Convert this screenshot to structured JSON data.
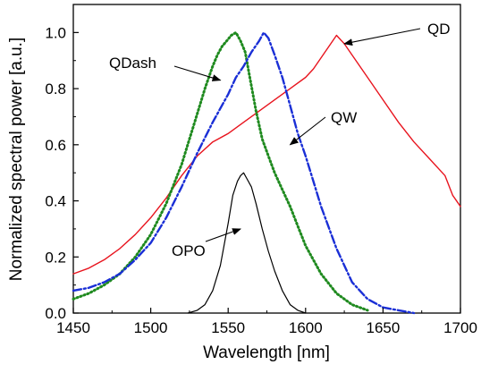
{
  "chart_data": {
    "type": "line",
    "xlabel": "Wavelength [nm]",
    "ylabel": "Normalized spectral power [a.u.]",
    "xlim": [
      1450,
      1700
    ],
    "ylim": [
      0.0,
      1.1
    ],
    "x_ticks": [
      1450,
      1500,
      1550,
      1600,
      1650,
      1700
    ],
    "x_tick_labels": [
      "1450",
      "1500",
      "1550",
      "1600",
      "1650",
      "1700"
    ],
    "y_ticks": [
      0.0,
      0.2,
      0.4,
      0.6,
      0.8,
      1.0
    ],
    "y_tick_labels": [
      "0.0",
      "0.2",
      "0.4",
      "0.6",
      "0.8",
      "1.0"
    ],
    "grid": false,
    "series": [
      {
        "name": "QD",
        "color": "#e8141e",
        "style": "solid",
        "x": [
          1450,
          1460,
          1470,
          1480,
          1490,
          1500,
          1510,
          1520,
          1530,
          1540,
          1550,
          1560,
          1570,
          1580,
          1590,
          1600,
          1605,
          1610,
          1615,
          1620,
          1625,
          1630,
          1640,
          1650,
          1660,
          1670,
          1680,
          1690,
          1695,
          1700
        ],
        "values": [
          0.14,
          0.16,
          0.19,
          0.23,
          0.28,
          0.34,
          0.41,
          0.49,
          0.56,
          0.61,
          0.64,
          0.68,
          0.72,
          0.76,
          0.8,
          0.84,
          0.87,
          0.91,
          0.95,
          0.99,
          0.96,
          0.92,
          0.84,
          0.76,
          0.68,
          0.61,
          0.55,
          0.49,
          0.42,
          0.38
        ]
      },
      {
        "name": "QDash",
        "color": "#1f8a1f",
        "style": "dotted",
        "x": [
          1450,
          1460,
          1470,
          1480,
          1490,
          1500,
          1510,
          1520,
          1525,
          1530,
          1535,
          1540,
          1543,
          1546,
          1549,
          1552,
          1555,
          1558,
          1561,
          1564,
          1568,
          1572,
          1576,
          1580,
          1585,
          1590,
          1595,
          1600,
          1610,
          1620,
          1630,
          1640
        ],
        "values": [
          0.05,
          0.07,
          0.1,
          0.14,
          0.2,
          0.28,
          0.39,
          0.53,
          0.62,
          0.71,
          0.8,
          0.88,
          0.92,
          0.95,
          0.97,
          0.99,
          1.0,
          0.97,
          0.93,
          0.84,
          0.72,
          0.62,
          0.56,
          0.5,
          0.44,
          0.38,
          0.31,
          0.24,
          0.14,
          0.07,
          0.03,
          0.01
        ]
      },
      {
        "name": "QW",
        "color": "#1a2fd6",
        "style": "dashdot",
        "x": [
          1450,
          1460,
          1470,
          1480,
          1490,
          1500,
          1510,
          1520,
          1530,
          1540,
          1550,
          1555,
          1560,
          1565,
          1570,
          1573,
          1576,
          1580,
          1585,
          1590,
          1595,
          1600,
          1605,
          1610,
          1620,
          1630,
          1640,
          1650,
          1660,
          1670
        ],
        "values": [
          0.08,
          0.09,
          0.11,
          0.14,
          0.19,
          0.25,
          0.34,
          0.45,
          0.57,
          0.68,
          0.78,
          0.84,
          0.88,
          0.93,
          0.97,
          1.0,
          0.98,
          0.92,
          0.84,
          0.74,
          0.64,
          0.56,
          0.47,
          0.38,
          0.23,
          0.11,
          0.05,
          0.02,
          0.01,
          0.0
        ]
      },
      {
        "name": "OPO",
        "color": "#000000",
        "style": "solid",
        "x": [
          1524,
          1530,
          1535,
          1540,
          1545,
          1550,
          1553,
          1556,
          1558,
          1560,
          1562,
          1565,
          1568,
          1572,
          1576,
          1580,
          1585,
          1590,
          1595,
          1600
        ],
        "values": [
          0.0,
          0.01,
          0.03,
          0.08,
          0.17,
          0.32,
          0.42,
          0.47,
          0.49,
          0.5,
          0.48,
          0.45,
          0.39,
          0.3,
          0.22,
          0.15,
          0.08,
          0.03,
          0.01,
          0.0
        ]
      }
    ],
    "annotations": [
      {
        "text": "QD",
        "target": [
          1625,
          0.96
        ]
      },
      {
        "text": "QDash",
        "target": [
          1545,
          0.83
        ]
      },
      {
        "text": "QW",
        "target": [
          1590,
          0.6
        ]
      },
      {
        "text": "OPO",
        "target": [
          1558,
          0.3
        ]
      }
    ]
  }
}
